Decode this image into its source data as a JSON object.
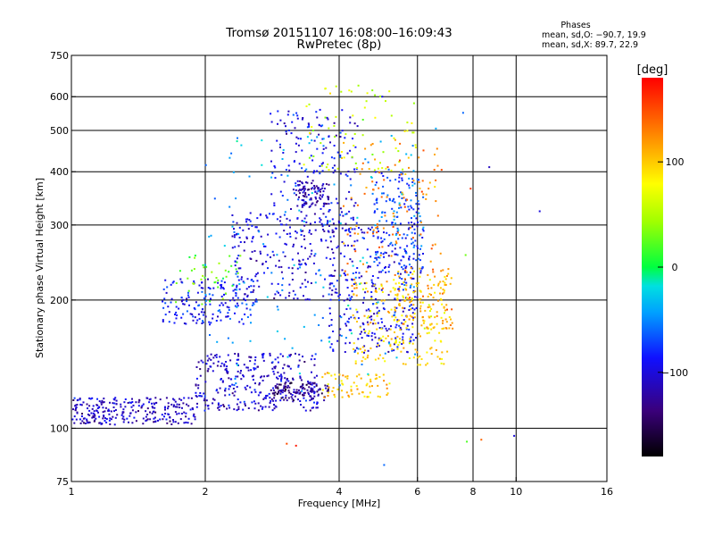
{
  "chart_data": {
    "type": "scatter",
    "title": "Tromsø 20151107 16:08:00–16:09:43",
    "subtitle": "RwPretec (8p)",
    "xlabel": "Frequency [MHz]",
    "ylabel": "Stationary phase Virtual Height [km]",
    "x_scale": "log",
    "y_scale": "log",
    "xlim": [
      1,
      16
    ],
    "ylim": [
      75,
      750
    ],
    "x_ticks": [
      "1",
      "2",
      "4",
      "6",
      "8",
      "10",
      "16"
    ],
    "y_ticks": [
      "75",
      "100",
      "200",
      "300",
      "400",
      "500",
      "600",
      "750"
    ],
    "grid": true,
    "phase_info": {
      "heading": "Phases",
      "line_o": "mean, sd,O: −90.7, 19.9",
      "line_x": "mean, sd,X:  89.7, 22.9"
    },
    "colorbar": {
      "label": "[deg]",
      "range": [
        -180,
        180
      ],
      "ticks": [
        "100",
        "0",
        "−100"
      ],
      "tick_values": [
        100,
        0,
        -100
      ]
    },
    "clusters": [
      {
        "x0": 1.0,
        "x1": 1.9,
        "y0": 102,
        "y1": 118,
        "phase": -110,
        "n": 260
      },
      {
        "x0": 1.9,
        "x1": 3.6,
        "y0": 110,
        "y1": 150,
        "phase": -105,
        "n": 330
      },
      {
        "x0": 2.8,
        "x1": 3.8,
        "y0": 116,
        "y1": 128,
        "phase": -135,
        "n": 90
      },
      {
        "x0": 1.6,
        "x1": 2.6,
        "y0": 175,
        "y1": 225,
        "phase": -85,
        "n": 160
      },
      {
        "x0": 1.7,
        "x1": 2.4,
        "y0": 195,
        "y1": 255,
        "phase": 25,
        "n": 40
      },
      {
        "x0": 2.3,
        "x1": 3.9,
        "y0": 200,
        "y1": 320,
        "phase": -100,
        "n": 220
      },
      {
        "x0": 2.8,
        "x1": 4.4,
        "y0": 300,
        "y1": 560,
        "phase": -95,
        "n": 180
      },
      {
        "x0": 3.2,
        "x1": 3.8,
        "y0": 330,
        "y1": 380,
        "phase": -120,
        "n": 80
      },
      {
        "x0": 3.8,
        "x1": 6.0,
        "y0": 150,
        "y1": 300,
        "phase": -95,
        "n": 300
      },
      {
        "x0": 4.8,
        "x1": 6.2,
        "y0": 230,
        "y1": 400,
        "phase": -70,
        "n": 170
      },
      {
        "x0": 3.6,
        "x1": 5.2,
        "y0": 118,
        "y1": 135,
        "phase": 100,
        "n": 70
      },
      {
        "x0": 4.3,
        "x1": 7.0,
        "y0": 140,
        "y1": 220,
        "phase": 95,
        "n": 210
      },
      {
        "x0": 5.3,
        "x1": 7.2,
        "y0": 170,
        "y1": 240,
        "phase": 110,
        "n": 90
      },
      {
        "x0": 3.3,
        "x1": 6.0,
        "y0": 400,
        "y1": 640,
        "phase": 60,
        "n": 70
      },
      {
        "x0": 4.0,
        "x1": 6.8,
        "y0": 200,
        "y1": 480,
        "phase": 130,
        "n": 120
      },
      {
        "x0": 2.0,
        "x1": 6.0,
        "y0": 120,
        "y1": 500,
        "phase": -40,
        "n": 150
      }
    ],
    "isolated_points": [
      {
        "x": 3.05,
        "y": 92,
        "phase": 150
      },
      {
        "x": 3.2,
        "y": 91,
        "phase": 170
      },
      {
        "x": 5.05,
        "y": 82,
        "phase": -60
      },
      {
        "x": 7.75,
        "y": 93,
        "phase": 20
      },
      {
        "x": 8.35,
        "y": 94,
        "phase": 140
      },
      {
        "x": 9.9,
        "y": 96,
        "phase": -100
      },
      {
        "x": 8.7,
        "y": 410,
        "phase": -110
      },
      {
        "x": 11.3,
        "y": 323,
        "phase": -100
      },
      {
        "x": 7.6,
        "y": 550,
        "phase": -60
      },
      {
        "x": 7.9,
        "y": 365,
        "phase": 160
      },
      {
        "x": 7.7,
        "y": 255,
        "phase": 30
      },
      {
        "x": 6.6,
        "y": 505,
        "phase": -40
      },
      {
        "x": 5.0,
        "y": 600,
        "phase": -90
      }
    ]
  }
}
